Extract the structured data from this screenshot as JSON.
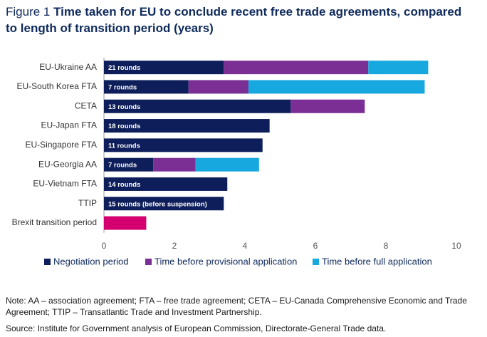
{
  "chart_data": {
    "type": "stacked-bar-horizontal",
    "figure_label": "Figure 1",
    "title": "Time taken for EU to conclude recent free trade agreements, compared to length of transition period (years)",
    "categories": [
      "EU-Ukraine AA",
      "EU-South Korea FTA",
      "CETA",
      "EU-Japan FTA",
      "EU-Singapore FTA",
      "EU-Georgia AA",
      "EU-Vietnam FTA",
      "TTIP",
      "Brexit transition period"
    ],
    "series": [
      {
        "name": "Negotiation period",
        "color": "#0e1e5b",
        "values": [
          3.4,
          2.4,
          5.3,
          4.7,
          4.5,
          1.4,
          3.5,
          3.4,
          1.2
        ],
        "colors": [
          "#0e1e5b",
          "#0e1e5b",
          "#0e1e5b",
          "#0e1e5b",
          "#0e1e5b",
          "#0e1e5b",
          "#0e1e5b",
          "#0e1e5b",
          "#d5006f"
        ]
      },
      {
        "name": "Time before provisional application",
        "color": "#7b2f95",
        "values": [
          4.1,
          1.7,
          2.1,
          null,
          null,
          1.2,
          null,
          null,
          null
        ]
      },
      {
        "name": "Time before full application",
        "color": "#16a8de",
        "values": [
          1.7,
          5.0,
          null,
          null,
          null,
          1.8,
          null,
          null,
          null
        ]
      }
    ],
    "bar_labels": [
      "21 rounds",
      "7 rounds",
      "13 rounds",
      "18 rounds",
      "11 rounds",
      "7 rounds",
      "14 rounds",
      "15 rounds (before suspension)",
      null
    ],
    "xlim": [
      0,
      10
    ],
    "xticks": [
      0,
      2,
      4,
      6,
      8,
      10
    ],
    "grid": false,
    "notes": "Note: AA – association agreement; FTA –  free trade agreement; CETA – EU-Canada Comprehensive Economic and Trade Agreement; TTIP – Transatlantic Trade and Investment Partnership.",
    "source": "Source: Institute for Government analysis of European Commission, Directorate-General Trade data."
  }
}
